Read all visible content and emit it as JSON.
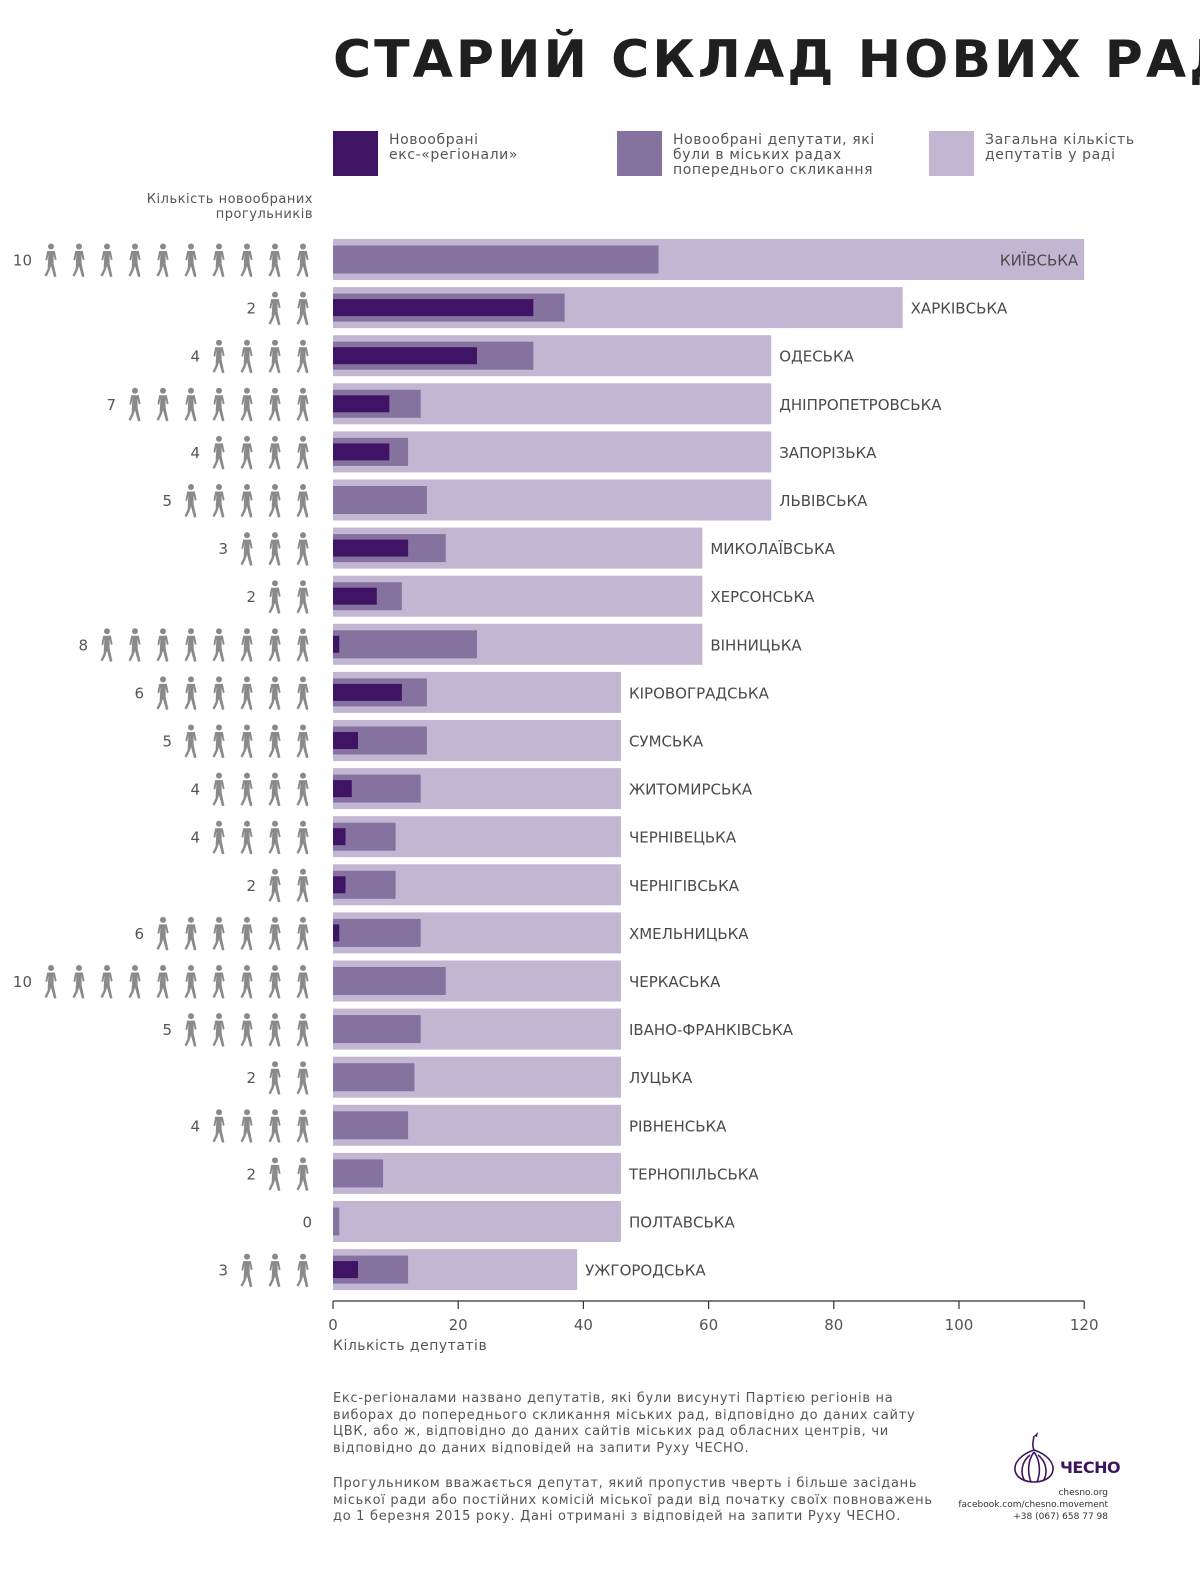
{
  "title": "СТАРИЙ СКЛАД НОВИХ РАД",
  "colors": {
    "ex_regionals": "#401465",
    "previous_council": "#85729f",
    "total": "#c3b6d2",
    "person_icon": "#8a8a8a",
    "brand": "#3d1560"
  },
  "legend": [
    {
      "label": "Новообрані\nекс-«регіонали»",
      "color": "#401465"
    },
    {
      "label": "Новообрані депутати, які\nбули в міських радах\nпопереднього скликання",
      "color": "#85729f"
    },
    {
      "label": "Загальна кількість\nдепутатів у раді",
      "color": "#c3b6d2"
    }
  ],
  "absentee_caption": "Кількість новообраних\nпрогульників",
  "x_axis_title": "Кількість депутатів",
  "chart_data": {
    "type": "bar",
    "orientation": "horizontal",
    "xlabel": "Кількість депутатів",
    "xlim": [
      0,
      120
    ],
    "xticks": [
      0,
      20,
      40,
      60,
      80,
      100,
      120
    ],
    "categories": [
      "КИЇВСЬКА",
      "ХАРКІВСЬКА",
      "ОДЕСЬКА",
      "ДНІПРОПЕТРОВСЬКА",
      "ЗАПОРІЗЬКА",
      "ЛЬВІВСЬКА",
      "МИКОЛАЇВСЬКА",
      "ХЕРСОНСЬКА",
      "ВІННИЦЬКА",
      "КІРОВОГРАДСЬКА",
      "СУМСЬКА",
      "ЖИТОМИРСЬКА",
      "ЧЕРНІВЕЦЬКА",
      "ЧЕРНІГІВСЬКА",
      "ХМЕЛЬНИЦЬКА",
      "ЧЕРКАСЬКА",
      "ІВАНО-ФРАНКІВСЬКА",
      "ЛУЦЬКА",
      "РІВНЕНСЬКА",
      "ТЕРНОПІЛЬСЬКА",
      "ПОЛТАВСЬКА",
      "УЖГОРОДСЬКА"
    ],
    "series": [
      {
        "name": "Загальна кількість депутатів у раді",
        "values": [
          120,
          91,
          70,
          70,
          70,
          70,
          59,
          59,
          59,
          46,
          46,
          46,
          46,
          46,
          46,
          46,
          46,
          46,
          46,
          46,
          46,
          39
        ]
      },
      {
        "name": "Новообрані депутати, які були в міських радах попереднього скликання",
        "values": [
          52,
          37,
          32,
          14,
          12,
          15,
          18,
          11,
          23,
          15,
          15,
          14,
          10,
          10,
          14,
          18,
          14,
          13,
          12,
          8,
          1,
          12
        ]
      },
      {
        "name": "Новообрані екс-«регіонали»",
        "values": [
          0,
          32,
          23,
          9,
          9,
          0,
          12,
          7,
          1,
          11,
          4,
          3,
          2,
          2,
          1,
          0,
          0,
          0,
          0,
          0,
          0,
          4
        ]
      }
    ],
    "absentees": [
      10,
      2,
      4,
      7,
      4,
      5,
      3,
      2,
      8,
      6,
      5,
      4,
      4,
      2,
      6,
      10,
      5,
      2,
      4,
      2,
      0,
      3
    ]
  },
  "notes": [
    "Екс-регіоналами названо депутатів, які були висунуті Партією регіонів на виборах до попереднього скликання міських рад, відповідно до даних сайту ЦВК, або ж, відповідно до даних сайтів міських рад обласних центрів, чи відповідно до даних відповідей на запити Руху ЧЕСНО.",
    "Прогульником вважається депутат, який пропустив чверть і більше засідань міської ради або постійних комісій міської ради від початку своїх повноважень до 1 березня 2015 року. Дані отримані з відповідей на запити Руху ЧЕСНО."
  ],
  "brand": {
    "name": "ЧЕСНО",
    "site": "chesno.org",
    "facebook": "facebook.com/chesno.movement",
    "phone": "+38 (067) 658 77 98",
    "logo_icon": "garlic-icon"
  }
}
